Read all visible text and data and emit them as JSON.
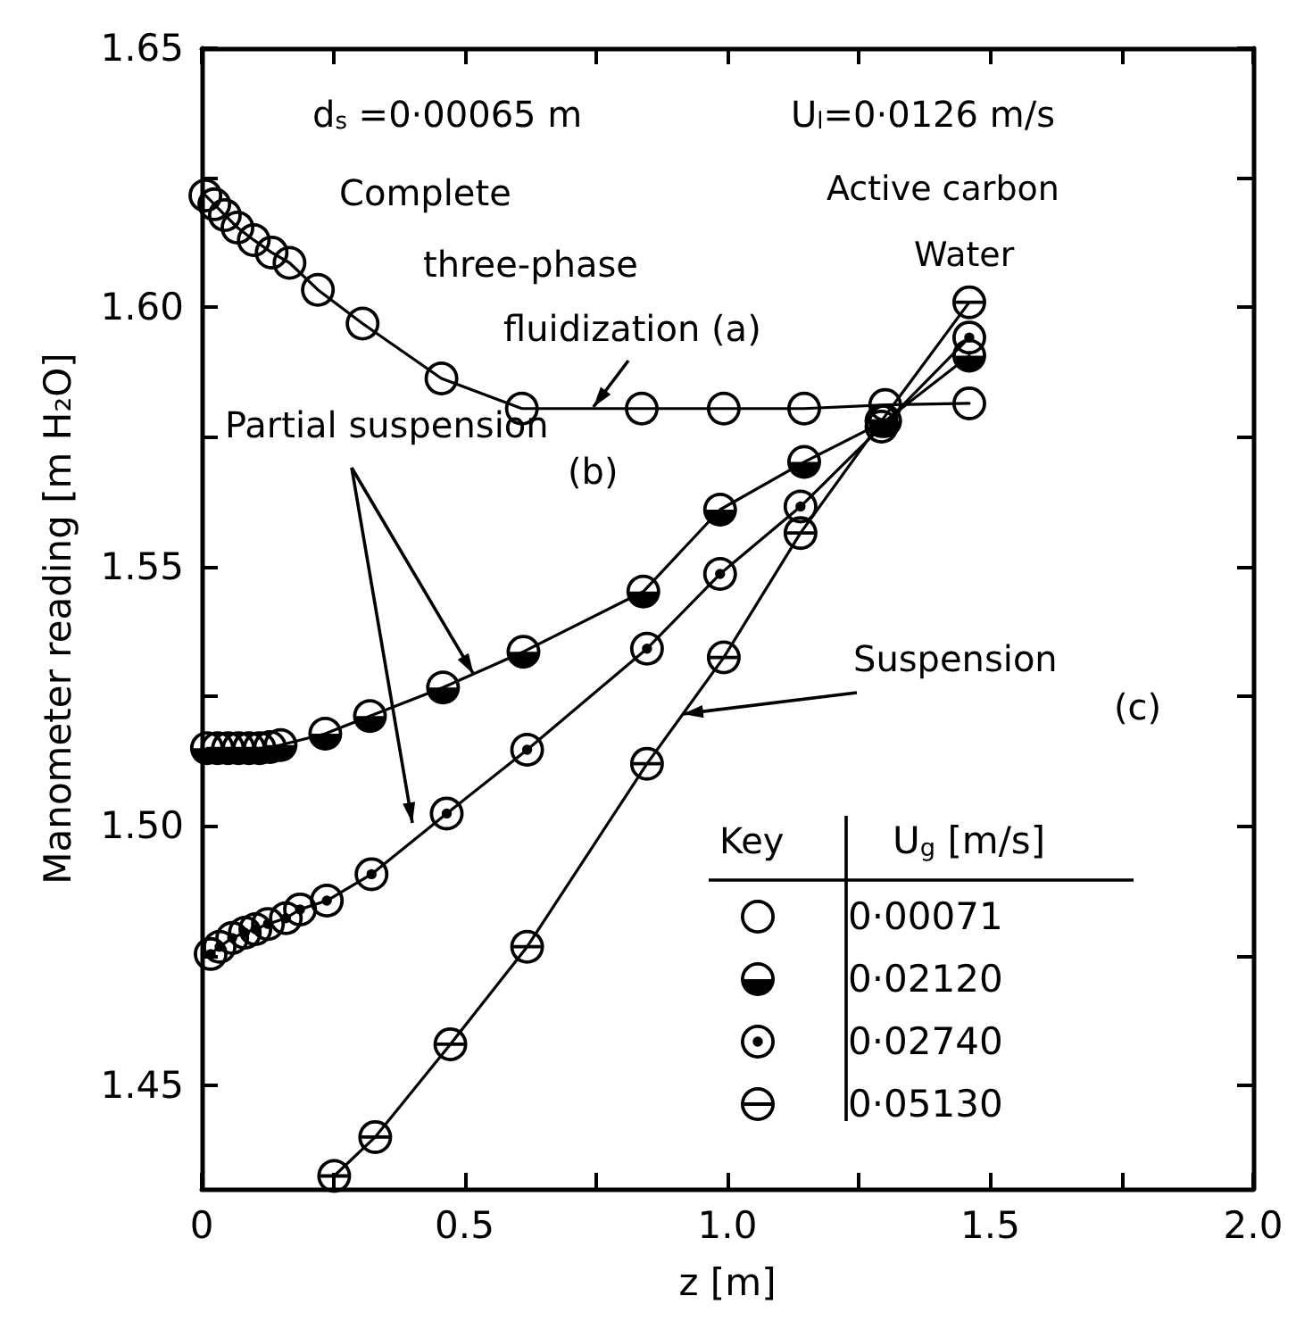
{
  "chart_data": {
    "type": "line",
    "xlabel": "z [m]",
    "ylabel": "Manometer reading [m H₂O]",
    "xlim": [
      0,
      2.0
    ],
    "ylim": [
      1.43,
      1.65
    ],
    "xticks": [
      0,
      {
        "value": 0.25,
        "label": null
      },
      0.5,
      {
        "value": 0.75,
        "label": null
      },
      {
        "value": 1.0,
        "label": "1.0"
      },
      {
        "value": 1.25,
        "label": null
      },
      1.5,
      {
        "value": 1.75,
        "label": null
      },
      {
        "value": 2.0,
        "label": "2.0"
      }
    ],
    "yticks": [
      1.45,
      {
        "value": 1.475,
        "label": null
      },
      {
        "value": 1.5,
        "label": "1.50"
      },
      {
        "value": 1.525,
        "label": null
      },
      1.55,
      {
        "value": 1.575,
        "label": null
      },
      {
        "value": 1.6,
        "label": "1.60"
      },
      {
        "value": 1.625,
        "label": null
      },
      1.65
    ],
    "grid": false,
    "legend": "bottom right",
    "legend_title": "U$_{g}$ [m/s]",
    "marker": "circle",
    "line_style": "solid",
    "annotations": [
      "d$_{s}$ =0·00065 m",
      "U$_{l}$=0·0126 m/s",
      "Active carbon",
      "Water",
      {
        "text": "Complete\nthree-phase\nfluidization (a)",
        "x": 0.745,
        "y": 1.5808
      },
      {
        "text": "Partial suspension",
        "x": 0.517,
        "y": 1.5293
      },
      "(b)",
      {
        "text": "Suspension",
        "x": 0.915,
        "y": 1.5216
      },
      "(c)",
      "Key"
    ],
    "series": [
      {
        "name": "0·00071",
        "color": "#000000",
        "x": [
          0.007,
          0.024,
          0.044,
          0.068,
          0.099,
          0.133,
          0.167,
          0.221,
          0.306,
          0.456,
          0.609,
          0.837,
          0.993,
          1.146,
          1.3,
          1.46
        ],
        "values": [
          1.6216,
          1.6199,
          1.6178,
          1.6154,
          1.613,
          1.6106,
          1.6086,
          1.6034,
          1.5969,
          1.5863,
          1.5805,
          1.5805,
          1.5805,
          1.5805,
          1.5812,
          1.5815
        ]
      },
      {
        "name": "0·02120",
        "color": "#000000",
        "x": [
          0.01,
          0.03,
          0.05,
          0.07,
          0.09,
          0.11,
          0.13,
          0.15,
          0.235,
          0.32,
          0.459,
          0.612,
          0.84,
          0.986,
          1.146,
          1.3,
          1.46
        ],
        "values": [
          1.515,
          1.515,
          1.515,
          1.515,
          1.515,
          1.515,
          1.5152,
          1.5156,
          1.5178,
          1.5212,
          1.5267,
          1.5336,
          1.5452,
          1.561,
          1.5702,
          1.5781,
          1.5907
        ]
      },
      {
        "name": "0·02740",
        "color": "#000000",
        "x": [
          0.017,
          0.034,
          0.058,
          0.082,
          0.102,
          0.126,
          0.16,
          0.187,
          0.238,
          0.323,
          0.466,
          0.619,
          0.847,
          0.986,
          1.139,
          1.293,
          1.46
        ],
        "values": [
          1.4753,
          1.4767,
          1.4784,
          1.4794,
          1.4801,
          1.4811,
          1.4822,
          1.4839,
          1.4856,
          1.4907,
          1.5024,
          1.5147,
          1.5342,
          1.5486,
          1.5616,
          1.577,
          1.5942
        ]
      },
      {
        "name": "0·05130",
        "color": "#000000",
        "x": [
          0.252,
          0.33,
          0.473,
          0.619,
          0.847,
          0.993,
          1.139,
          1.293,
          1.46
        ],
        "values": [
          1.4325,
          1.44,
          1.4579,
          1.4767,
          1.512,
          1.5325,
          1.5565,
          1.5781,
          1.601
        ]
      }
    ]
  }
}
